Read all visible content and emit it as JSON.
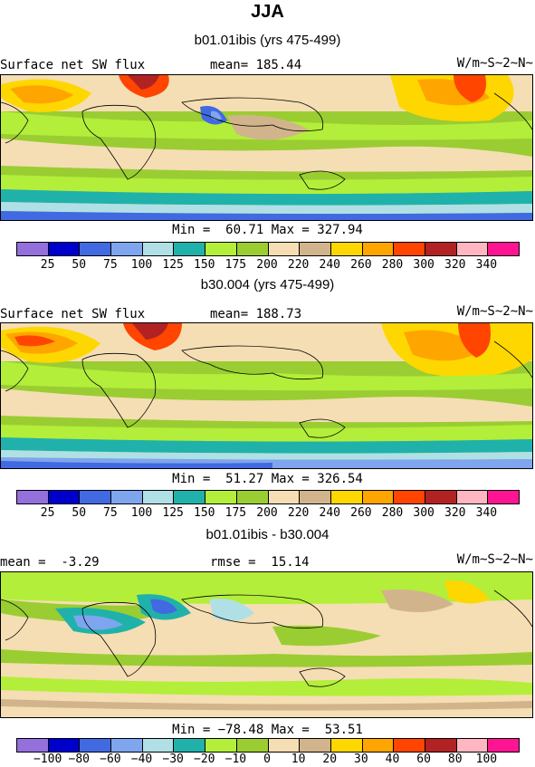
{
  "page": {
    "title": "JJA"
  },
  "panels": [
    {
      "subtitle": "b01.01ibis (yrs 475-499)",
      "left_label": "Surface net SW flux",
      "mid_label": "mean= 185.44",
      "units": "W/m~S~2~N~",
      "minmax": "Min =  60.71 Max = 327.94",
      "kind": "abs"
    },
    {
      "subtitle": "b30.004 (yrs 475-499)",
      "left_label": "Surface net SW flux",
      "mid_label": "mean= 188.73",
      "units": "W/m~S~2~N~",
      "minmax": "Min =  51.27 Max = 326.54",
      "kind": "abs"
    },
    {
      "subtitle": "b01.01ibis - b30.004",
      "left_label": "mean =  -3.29",
      "mid_label": "rmse =  15.14",
      "units": "W/m~S~2~N~",
      "minmax": "Min = −78.48 Max =  53.51",
      "kind": "diff"
    }
  ],
  "colorbars": {
    "abs": {
      "colors": [
        "#9370db",
        "#0000cd",
        "#4169e1",
        "#7fa5ee",
        "#b0e0e6",
        "#20b2aa",
        "#b3ee3a",
        "#9acd32",
        "#f5deb3",
        "#d2b48c",
        "#ffd700",
        "#ffa500",
        "#ff4500",
        "#b22222",
        "#ffb6c1",
        "#ff1493"
      ],
      "labels": [
        "25",
        "50",
        "75",
        "100",
        "125",
        "150",
        "175",
        "200",
        "220",
        "240",
        "260",
        "280",
        "300",
        "320",
        "340"
      ]
    },
    "diff": {
      "colors": [
        "#9370db",
        "#0000cd",
        "#4169e1",
        "#7fa5ee",
        "#b0e0e6",
        "#20b2aa",
        "#b3ee3a",
        "#9acd32",
        "#f5deb3",
        "#d2b48c",
        "#ffd700",
        "#ffa500",
        "#ff4500",
        "#b22222",
        "#ffb6c1",
        "#ff1493"
      ],
      "labels": [
        "−100",
        "−80",
        "−60",
        "−40",
        "−30",
        "−20",
        "−10",
        "0",
        "10",
        "20",
        "30",
        "40",
        "60",
        "80",
        "100"
      ]
    }
  }
}
